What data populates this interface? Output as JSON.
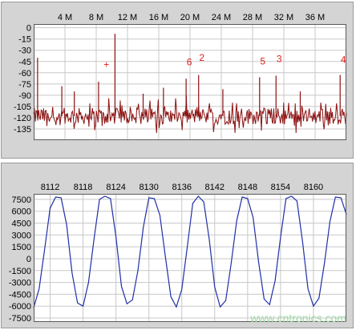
{
  "colors": {
    "panel": "#d4d4d4",
    "spectrum_line": "#8b1010",
    "waveform_line": "#1f2fa8",
    "marker_text": "#e02020",
    "watermark": "#9fd8a4"
  },
  "watermark": "www.cntronics.com",
  "chart_data": [
    {
      "type": "line",
      "series": [
        {
          "values": []
        }
      ],
      "xlim": [
        0,
        40
      ],
      "ylim": [
        -150,
        5
      ],
      "x_tick_values": [
        4,
        8,
        12,
        16,
        20,
        24,
        28,
        32,
        36
      ],
      "x_tick_labels": [
        "4 M",
        "8 M",
        "12 M",
        "16 M",
        "20 M",
        "24 M",
        "28 M",
        "32 M",
        "36 M"
      ],
      "y_tick_values": [
        0,
        -15,
        -30,
        -45,
        -60,
        -75,
        -90,
        -105,
        -120,
        -135
      ],
      "y_tick_labels": [
        "0",
        "-15",
        "-30",
        "-45",
        "-60",
        "-75",
        "-90",
        "-105",
        "-120",
        "-135"
      ],
      "noise_floor": -118,
      "spurs": [
        {
          "x": 0.5,
          "y": -40
        },
        {
          "x": 3.6,
          "y": -78
        },
        {
          "x": 5.2,
          "y": -85
        },
        {
          "x": 8.3,
          "y": -72
        },
        {
          "x": 10.4,
          "y": -8
        },
        {
          "x": 14.0,
          "y": -88
        },
        {
          "x": 16.6,
          "y": -80
        },
        {
          "x": 19.5,
          "y": -68
        },
        {
          "x": 21.1,
          "y": -63
        },
        {
          "x": 24.2,
          "y": -82
        },
        {
          "x": 28.9,
          "y": -66
        },
        {
          "x": 31.0,
          "y": -64
        },
        {
          "x": 34.1,
          "y": -85
        },
        {
          "x": 39.2,
          "y": -63
        }
      ],
      "markers": [
        {
          "label": "+",
          "x": 8.9,
          "y": -53
        },
        {
          "label": "6",
          "x": 19.5,
          "y": -50
        },
        {
          "label": "2",
          "x": 21.1,
          "y": -44
        },
        {
          "label": "5",
          "x": 28.9,
          "y": -49
        },
        {
          "label": "3",
          "x": 31.0,
          "y": -46
        },
        {
          "label": "4",
          "x": 39.2,
          "y": -47
        }
      ],
      "grid": true
    },
    {
      "type": "line",
      "series": [
        {
          "values": []
        }
      ],
      "xlim": [
        8109,
        8166
      ],
      "ylim": [
        -8000,
        8200
      ],
      "x_tick_values": [
        8112,
        8118,
        8124,
        8130,
        8136,
        8142,
        8148,
        8154,
        8160
      ],
      "x_tick_labels": [
        "8112",
        "8118",
        "8124",
        "8130",
        "8136",
        "8142",
        "8148",
        "8154",
        "8160"
      ],
      "y_tick_values": [
        7500,
        6000,
        4500,
        3000,
        1500,
        0,
        -1500,
        -3000,
        -4500,
        -6000,
        -7500
      ],
      "y_tick_labels": [
        "7500",
        "6000",
        "4500",
        "3000",
        "1500",
        "0",
        "-1500",
        "-3000",
        "-4500",
        "-6000",
        "-7500"
      ],
      "samples": [
        {
          "x": 8109,
          "y": -6200
        },
        {
          "x": 8110,
          "y": -3800
        },
        {
          "x": 8111,
          "y": 1200
        },
        {
          "x": 8112,
          "y": 6400
        },
        {
          "x": 8113,
          "y": 7800
        },
        {
          "x": 8114,
          "y": 7700
        },
        {
          "x": 8115,
          "y": 4300
        },
        {
          "x": 8116,
          "y": -1800
        },
        {
          "x": 8117,
          "y": -5600
        },
        {
          "x": 8118,
          "y": -6000
        },
        {
          "x": 8119,
          "y": -3000
        },
        {
          "x": 8120,
          "y": 2500
        },
        {
          "x": 8121,
          "y": 7500
        },
        {
          "x": 8122,
          "y": 7900
        },
        {
          "x": 8123,
          "y": 7600
        },
        {
          "x": 8124,
          "y": 2800
        },
        {
          "x": 8125,
          "y": -3500
        },
        {
          "x": 8126,
          "y": -5700
        },
        {
          "x": 8127,
          "y": -5200
        },
        {
          "x": 8128,
          "y": -1500
        },
        {
          "x": 8129,
          "y": 4000
        },
        {
          "x": 8130,
          "y": 7700
        },
        {
          "x": 8131,
          "y": 7600
        },
        {
          "x": 8132,
          "y": 5500
        },
        {
          "x": 8133,
          "y": 300
        },
        {
          "x": 8134,
          "y": -4800
        },
        {
          "x": 8135,
          "y": -6100
        },
        {
          "x": 8136,
          "y": -3900
        },
        {
          "x": 8137,
          "y": 1500
        },
        {
          "x": 8138,
          "y": 7000
        },
        {
          "x": 8139,
          "y": 7900
        },
        {
          "x": 8140,
          "y": 7200
        },
        {
          "x": 8141,
          "y": 2500
        },
        {
          "x": 8142,
          "y": -3600
        },
        {
          "x": 8143,
          "y": -6100
        },
        {
          "x": 8144,
          "y": -5300
        },
        {
          "x": 8145,
          "y": -600
        },
        {
          "x": 8146,
          "y": 4800
        },
        {
          "x": 8147,
          "y": 7800
        },
        {
          "x": 8148,
          "y": 7600
        },
        {
          "x": 8149,
          "y": 5200
        },
        {
          "x": 8150,
          "y": -400
        },
        {
          "x": 8151,
          "y": -5100
        },
        {
          "x": 8152,
          "y": -5800
        },
        {
          "x": 8153,
          "y": -2800
        },
        {
          "x": 8154,
          "y": 2700
        },
        {
          "x": 8155,
          "y": 7600
        },
        {
          "x": 8156,
          "y": 7900
        },
        {
          "x": 8157,
          "y": 7300
        },
        {
          "x": 8158,
          "y": 2200
        },
        {
          "x": 8159,
          "y": -3800
        },
        {
          "x": 8160,
          "y": -6000
        },
        {
          "x": 8161,
          "y": -5000
        },
        {
          "x": 8162,
          "y": -600
        },
        {
          "x": 8163,
          "y": 4700
        },
        {
          "x": 8164,
          "y": 7800
        },
        {
          "x": 8165,
          "y": 7700
        },
        {
          "x": 8166,
          "y": 5600
        }
      ],
      "grid": true
    }
  ]
}
